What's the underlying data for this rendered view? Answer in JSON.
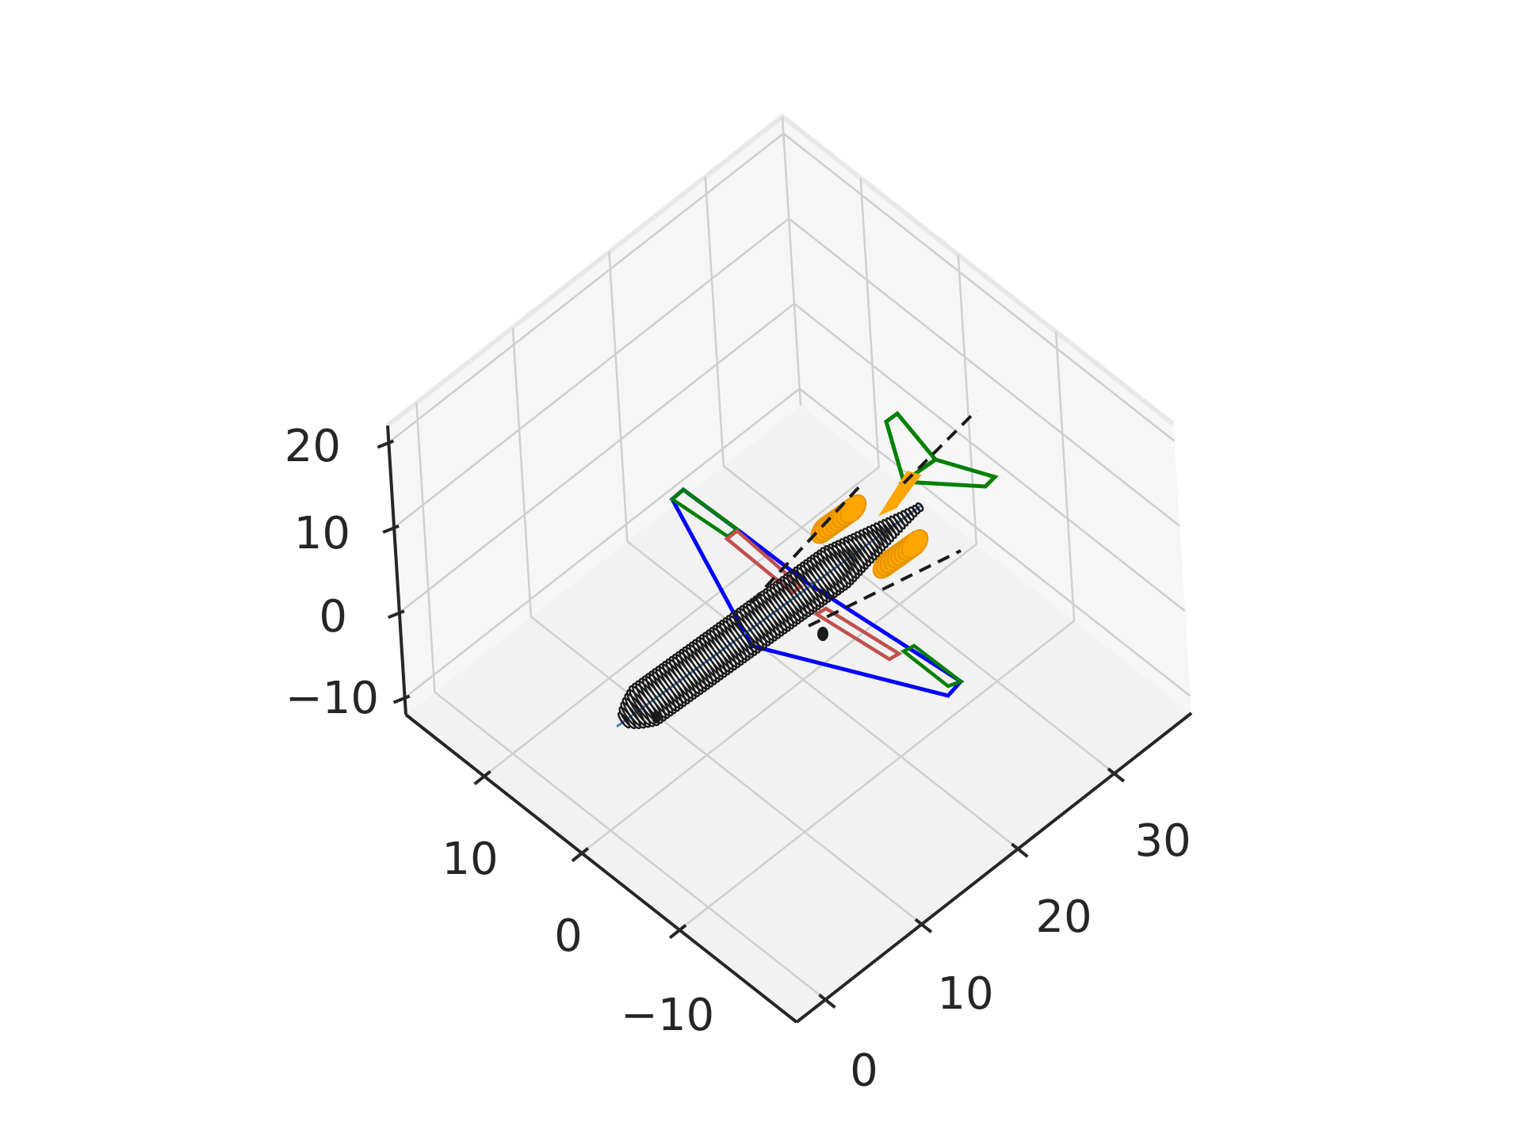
{
  "chart_data": {
    "type": "3d-line",
    "title": "",
    "xlabel": "",
    "ylabel": "",
    "zlabel": "",
    "axes": {
      "x": {
        "ticks": [
          "0",
          "10",
          "20",
          "30"
        ],
        "range": [
          -3,
          38
        ]
      },
      "y": {
        "ticks": [
          "−10",
          "0",
          "10"
        ],
        "range": [
          -18,
          22
        ]
      },
      "z": {
        "ticks": [
          "−10",
          "0",
          "10",
          "20"
        ],
        "range": [
          -12,
          22
        ]
      }
    },
    "grid": true,
    "legend": "none",
    "colors": {
      "fuselage": "#1a1a1a",
      "wing": "#0000ff",
      "aileron": "#c0504d",
      "wingtip": "#008000",
      "tail": "#008000",
      "engine": "#ffa500",
      "reference_line": "#1a1a1a",
      "centerline": "#4f81bd"
    },
    "series": [
      {
        "part": "fuselage",
        "x_range": [
          0,
          37
        ],
        "radius_max": 2.0,
        "rings": 90
      },
      {
        "part": "wing",
        "outline": [
          [
            13,
            2,
            0
          ],
          [
            22,
            2,
            0
          ],
          [
            27,
            15,
            0
          ],
          [
            26,
            15,
            0
          ]
        ]
      },
      {
        "part": "aileron",
        "outline": [
          [
            22,
            5,
            0
          ],
          [
            23,
            5,
            0
          ],
          [
            26,
            13,
            0
          ],
          [
            25,
            13,
            0
          ]
        ]
      },
      {
        "part": "tail",
        "outline": [
          [
            31,
            0,
            2
          ],
          [
            35,
            0,
            2
          ],
          [
            37,
            0,
            9
          ],
          [
            36,
            0,
            9
          ]
        ]
      },
      {
        "part": "engine",
        "position": [
          24,
          7,
          -2
        ],
        "length": 4
      },
      {
        "part": "engine",
        "position": [
          24,
          -7,
          -2
        ],
        "length": 4
      }
    ]
  }
}
